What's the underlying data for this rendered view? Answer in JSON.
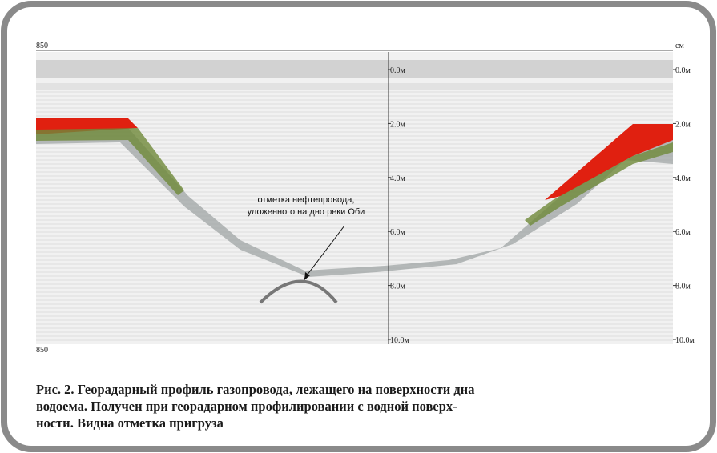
{
  "figure": {
    "top_left_label": "850",
    "top_right_label": "см",
    "bottom_left_label": "850",
    "depth_labels_center": [
      "0.0м",
      "2.0м",
      "4.0м",
      "6.0м",
      "8.0м",
      "10.0м"
    ],
    "depth_labels_right": [
      "0.0м",
      "2.0м",
      "4.0м",
      "6.0м",
      "8.0м",
      "10.0м"
    ],
    "annotation": [
      "отметка нефтепровода,",
      "уложенного на дно реки Оби"
    ],
    "caption": [
      "Рис. 2. Георадарный профиль газопровода, лежащего на поверхности дна",
      "водоема. Получен при георадарном профилировании с водной поверх-",
      "ности. Видна отметка пригруза"
    ]
  }
}
